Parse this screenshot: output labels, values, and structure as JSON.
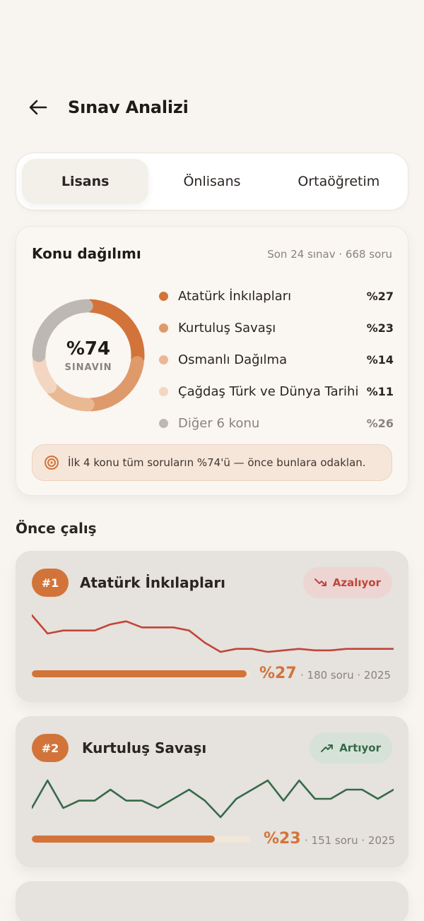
{
  "header": {
    "title": "Sınav Analizi",
    "back_icon": "arrow-left-icon"
  },
  "tabs": [
    {
      "label": "Lisans",
      "active": true
    },
    {
      "label": "Önlisans",
      "active": false
    },
    {
      "label": "Ortaöğretim",
      "active": false
    }
  ],
  "distribution": {
    "title": "Konu dağılımı",
    "meta": "Son 24 sınav · 668 soru",
    "center_pct": "%74",
    "center_label": "SINAVIN",
    "items": [
      {
        "name": "Atatürk İnkılapları",
        "pct": "%27",
        "value": 27,
        "color": "#d2743a"
      },
      {
        "name": "Kurtuluş Savaşı",
        "pct": "%23",
        "value": 23,
        "color": "#df9a6b"
      },
      {
        "name": "Osmanlı Dağılma",
        "pct": "%14",
        "value": 14,
        "color": "#e9b994"
      },
      {
        "name": "Çağdaş Türk ve Dünya Tarihi",
        "pct": "%11",
        "value": 11,
        "color": "#f3d6c1"
      },
      {
        "name": "Diğer 6 konu",
        "pct": "%26",
        "value": 26,
        "color": "#bdb8b1"
      }
    ],
    "tip": "İlk 4 konu tüm soruların %74'ü — önce bunlara odaklan.",
    "tip_icon": "target-icon"
  },
  "section_title": "Önce çalış",
  "topics": [
    {
      "rank": "#1",
      "name": "Atatürk İnkılapları",
      "trend": "Azalıyor",
      "trend_dir": "down",
      "trend_icon": "trending-down-icon",
      "pct": "%27",
      "share": 0.27,
      "meta": "· 180 soru · 2025",
      "spark": [
        88,
        82,
        83,
        83,
        83,
        85,
        86,
        84,
        84,
        84,
        83,
        79,
        76,
        77,
        77,
        76,
        76.5,
        77,
        76.5,
        76.5,
        77,
        77,
        77,
        77
      ],
      "color": "#c0453a"
    },
    {
      "rank": "#2",
      "name": "Kurtuluş Savaşı",
      "trend": "Artıyor",
      "trend_dir": "up",
      "trend_icon": "trending-up-icon",
      "pct": "%23",
      "share": 0.23,
      "meta": "· 151 soru · 2025",
      "spark": [
        40,
        55,
        40,
        44,
        44,
        50,
        44,
        44,
        40,
        45,
        50,
        44,
        35,
        45,
        50,
        55,
        44,
        55,
        45,
        45,
        50,
        50,
        45,
        50
      ],
      "color": "#356a48"
    }
  ]
}
